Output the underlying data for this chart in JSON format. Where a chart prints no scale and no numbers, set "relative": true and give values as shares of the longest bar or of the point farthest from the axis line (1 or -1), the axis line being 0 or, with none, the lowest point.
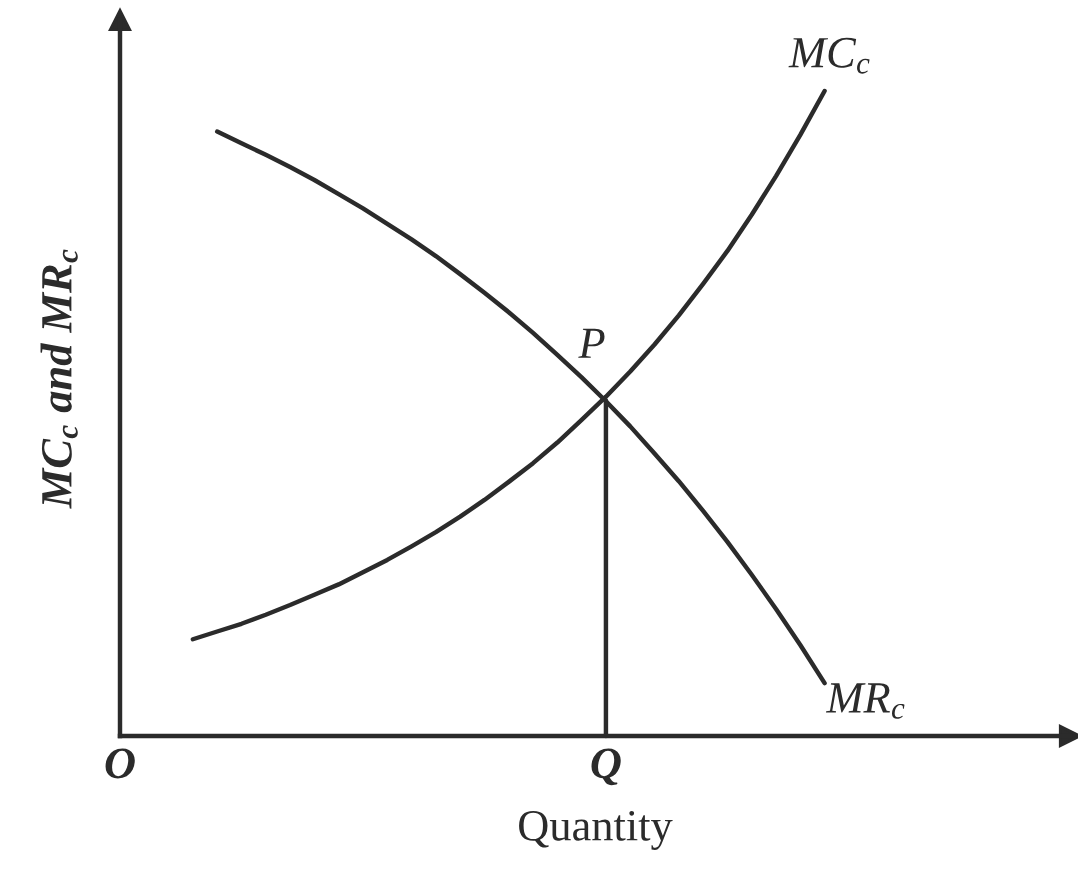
{
  "chart_data": {
    "type": "line",
    "relative": true,
    "categories": [
      "O",
      null,
      null,
      null,
      null,
      null,
      null,
      null,
      null,
      null,
      null,
      null,
      null,
      null,
      null,
      null,
      null,
      null,
      null,
      null,
      "Q",
      null,
      null,
      null,
      null,
      null,
      null,
      null,
      null,
      null
    ],
    "series": [
      {
        "name": "MC$_{c}$",
        "color": "#2b2b2b",
        "values": [
          null,
          null,
          null,
          0.15,
          0.162,
          0.174,
          0.188,
          0.203,
          0.219,
          0.235,
          0.254,
          0.273,
          0.294,
          0.316,
          0.34,
          0.366,
          0.394,
          0.423,
          0.455,
          0.49,
          0.526,
          0.565,
          0.607,
          0.652,
          0.701,
          0.752,
          0.808,
          0.868,
          0.932,
          1.0
        ]
      },
      {
        "name": "MR$_{c}$",
        "color": "#2b2b2b",
        "values": [
          null,
          null,
          null,
          null,
          0.937,
          0.919,
          0.901,
          0.882,
          0.862,
          0.84,
          0.818,
          0.794,
          0.77,
          0.744,
          0.716,
          0.687,
          0.657,
          0.625,
          0.591,
          0.556,
          0.519,
          0.48,
          0.438,
          0.395,
          0.349,
          0.301,
          0.25,
          0.197,
          0.141,
          0.082
        ]
      },
      {
        "type": "line",
        "color": "#2b2b2b",
        "x": [
          "Q",
          "Q"
        ],
        "values": [
          0,
          0.52
        ]
      }
    ],
    "xlabel": "Quantity",
    "ylabel": "MC$_{c}$ and MR$_{c}$",
    "annotations": [
      {
        "text": "P",
        "x": "Q",
        "y": 0.52
      }
    ]
  }
}
